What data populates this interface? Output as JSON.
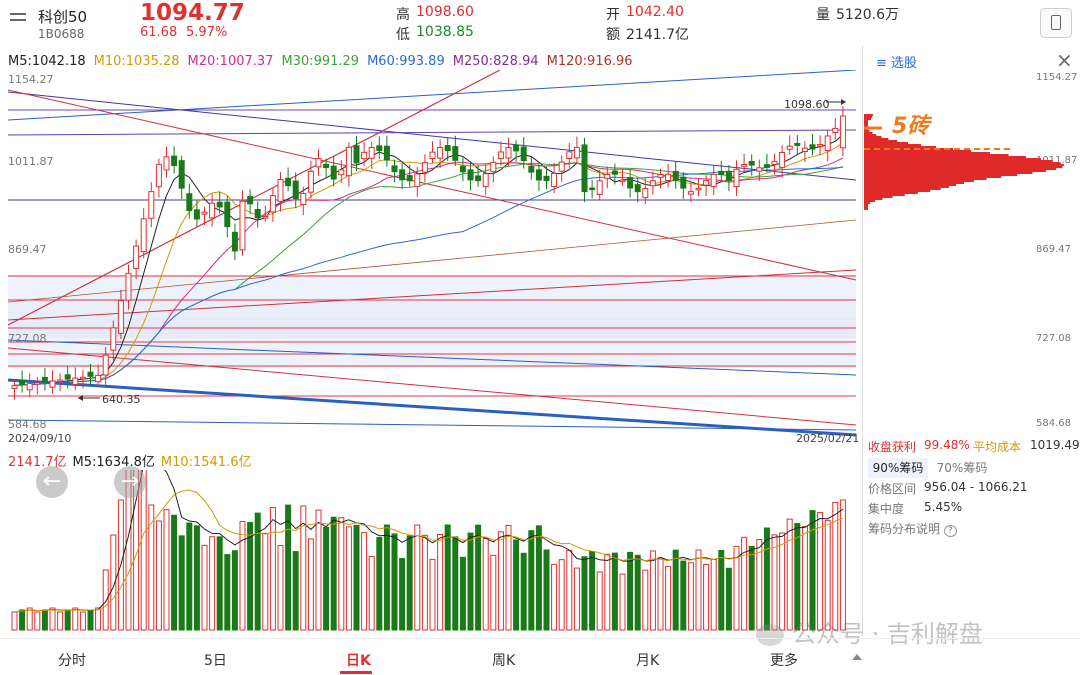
{
  "header": {
    "name": "科创50",
    "code": "1B0688",
    "price": "1094.77",
    "change": "61.68",
    "change_pct": "5.97%",
    "high_label": "高",
    "high": "1098.60",
    "low_label": "低",
    "low": "1038.85",
    "open_label": "开",
    "open": "1042.40",
    "amount_label": "额",
    "amount": "2141.7亿",
    "volume_label": "量",
    "volume": "5120.6万"
  },
  "ma": {
    "m5": "M5:1042.18",
    "m10": "M10:1035.28",
    "m20": "M20:1007.37",
    "m30": "M30:991.29",
    "m60": "M60:993.89",
    "m250": "M250:828.94",
    "m120": "M120:916.96"
  },
  "axis": {
    "p1": "1154.27",
    "p2": "1011.87",
    "p3": "869.47",
    "p4": "727.08",
    "p5": "584.68",
    "date_start": "2024/09/10",
    "date_end": "2025/02/21",
    "high_mark": "1098.60",
    "low_mark": "640.35"
  },
  "volume_panel": {
    "total": "2141.7亿",
    "m5": "M5:1634.8亿",
    "m10": "M10:1541.6亿"
  },
  "side": {
    "select_label": "选股",
    "y1": "1154.27",
    "y2": "1011.87",
    "y3": "869.47",
    "y4": "727.08",
    "y5": "584.68",
    "annotation": "5砖",
    "profit_label": "收盘获利",
    "profit": "99.48%",
    "cost_label": "平均成本",
    "cost": "1019.49",
    "tab90": "90%筹码",
    "tab70": "70%筹码",
    "range_label": "价格区间",
    "range": "956.04 - 1066.21",
    "conc_label": "集中度",
    "conc": "5.45%",
    "help": "筹码分布说明"
  },
  "tabs": [
    "分时",
    "5日",
    "日K",
    "周K",
    "月K",
    "更多"
  ],
  "watermark": "公众号 · 吉利解盘",
  "colors": {
    "up": "#e03030",
    "down": "#1a7a1a",
    "accent": "#e03030"
  }
}
